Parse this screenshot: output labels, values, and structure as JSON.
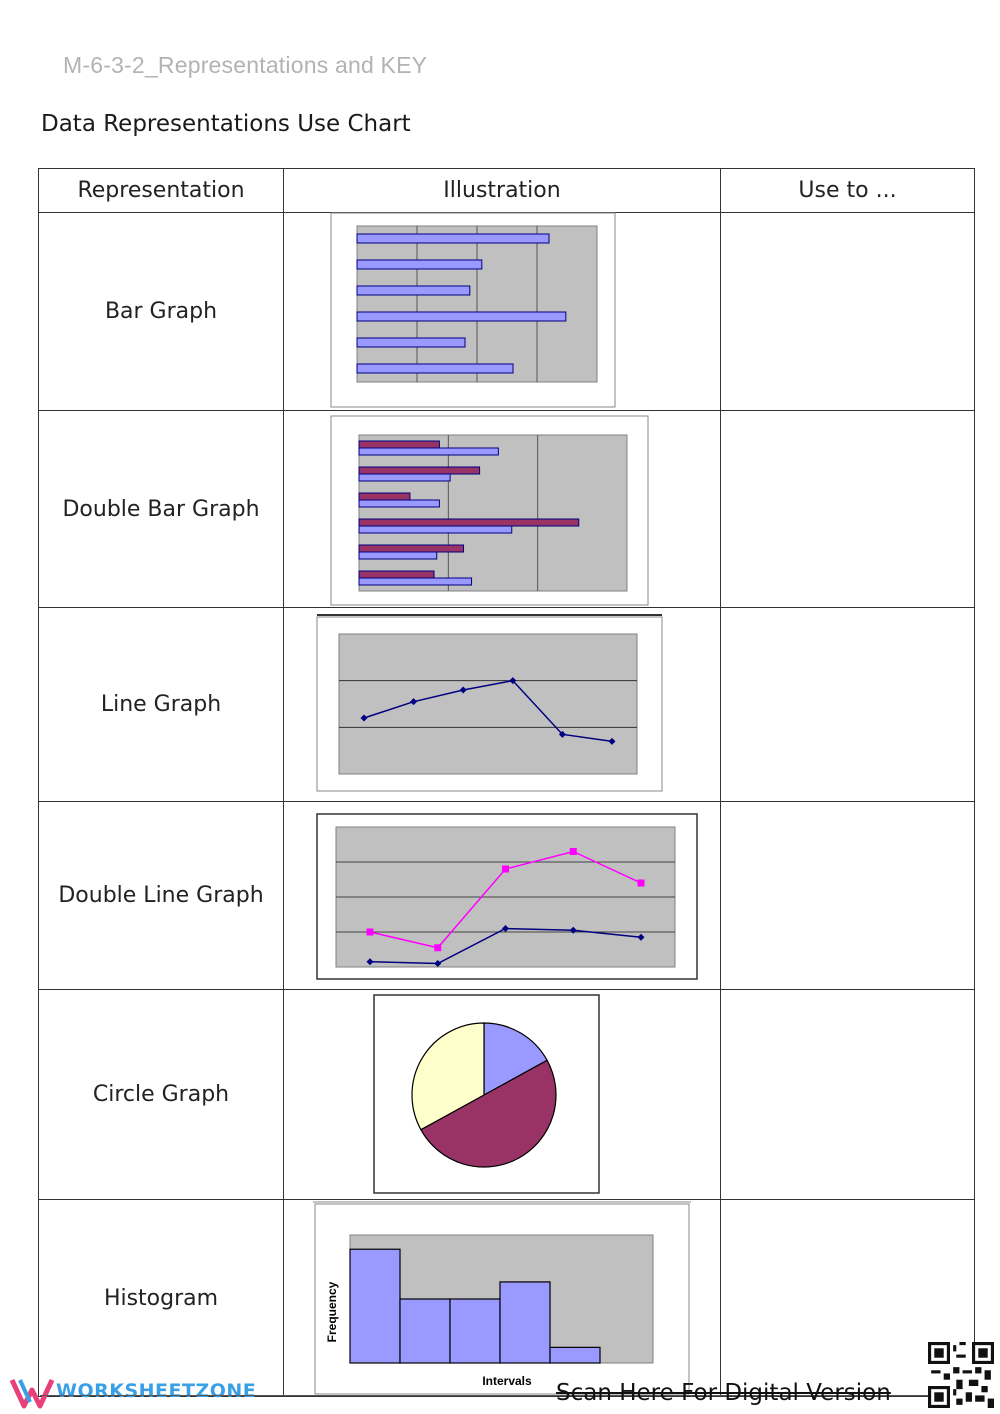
{
  "header": {
    "doc_code": "M-6-3-2_Representations and KEY",
    "title": "Data Representations Use Chart"
  },
  "table": {
    "columns": [
      "Representation",
      "Illustration",
      "Use to ..."
    ],
    "rows": [
      {
        "name": "Bar Graph",
        "use": ""
      },
      {
        "name": "Double Bar Graph",
        "use": ""
      },
      {
        "name": "Line Graph",
        "use": ""
      },
      {
        "name": "Double Line Graph",
        "use": ""
      },
      {
        "name": "Circle Graph",
        "use": ""
      },
      {
        "name": "Histogram",
        "use": ""
      }
    ]
  },
  "chart_data": [
    {
      "type": "bar",
      "orientation": "horizontal",
      "values": [
        8,
        5.2,
        4.7,
        8.7,
        4.5,
        6.5
      ],
      "xlim": [
        0,
        10
      ],
      "bar_color": "#9999ff",
      "plot_bg": "#c0c0c0",
      "grid": true
    },
    {
      "type": "bar",
      "orientation": "horizontal",
      "series": [
        {
          "values": [
            3,
            4.5,
            1.9,
            8.2,
            3.9,
            2.8
          ],
          "color": "#993366"
        },
        {
          "values": [
            5.2,
            3.4,
            3.0,
            5.7,
            2.9,
            4.2
          ],
          "color": "#9999ff"
        }
      ],
      "xlim": [
        0,
        10
      ],
      "plot_bg": "#c0c0c0",
      "grid": true
    },
    {
      "type": "line",
      "x": [
        1,
        2,
        3,
        4,
        5,
        6
      ],
      "values": [
        1.2,
        1.55,
        1.8,
        2.0,
        0.85,
        0.7
      ],
      "ylim": [
        0,
        3
      ],
      "line_color": "#000080",
      "plot_bg": "#c0c0c0",
      "grid": true
    },
    {
      "type": "line",
      "x": [
        1,
        2,
        3,
        4,
        5
      ],
      "series": [
        {
          "values": [
            1.0,
            0.55,
            2.8,
            3.3,
            2.4
          ],
          "color": "#ff00ff"
        },
        {
          "values": [
            0.15,
            0.1,
            1.1,
            1.05,
            0.85
          ],
          "color": "#000080"
        }
      ],
      "ylim": [
        0,
        4
      ],
      "plot_bg": "#c0c0c0",
      "grid": true
    },
    {
      "type": "pie",
      "values": [
        17,
        50,
        33
      ],
      "colors": [
        "#9999ff",
        "#993366",
        "#ffffcc"
      ]
    },
    {
      "type": "bar",
      "subtype": "histogram",
      "values": [
        8,
        4.5,
        4.5,
        5.7,
        1.1
      ],
      "ylim": [
        0,
        9
      ],
      "xlabel": "Intervals",
      "ylabel": "Frequency",
      "bar_color": "#9999ff",
      "plot_bg": "#c0c0c0"
    }
  ],
  "footer": {
    "brand": "WORKSHEETZONE",
    "scan_text": "Scan Here For Digital Version",
    "brand_color": "#3aa0e6"
  }
}
